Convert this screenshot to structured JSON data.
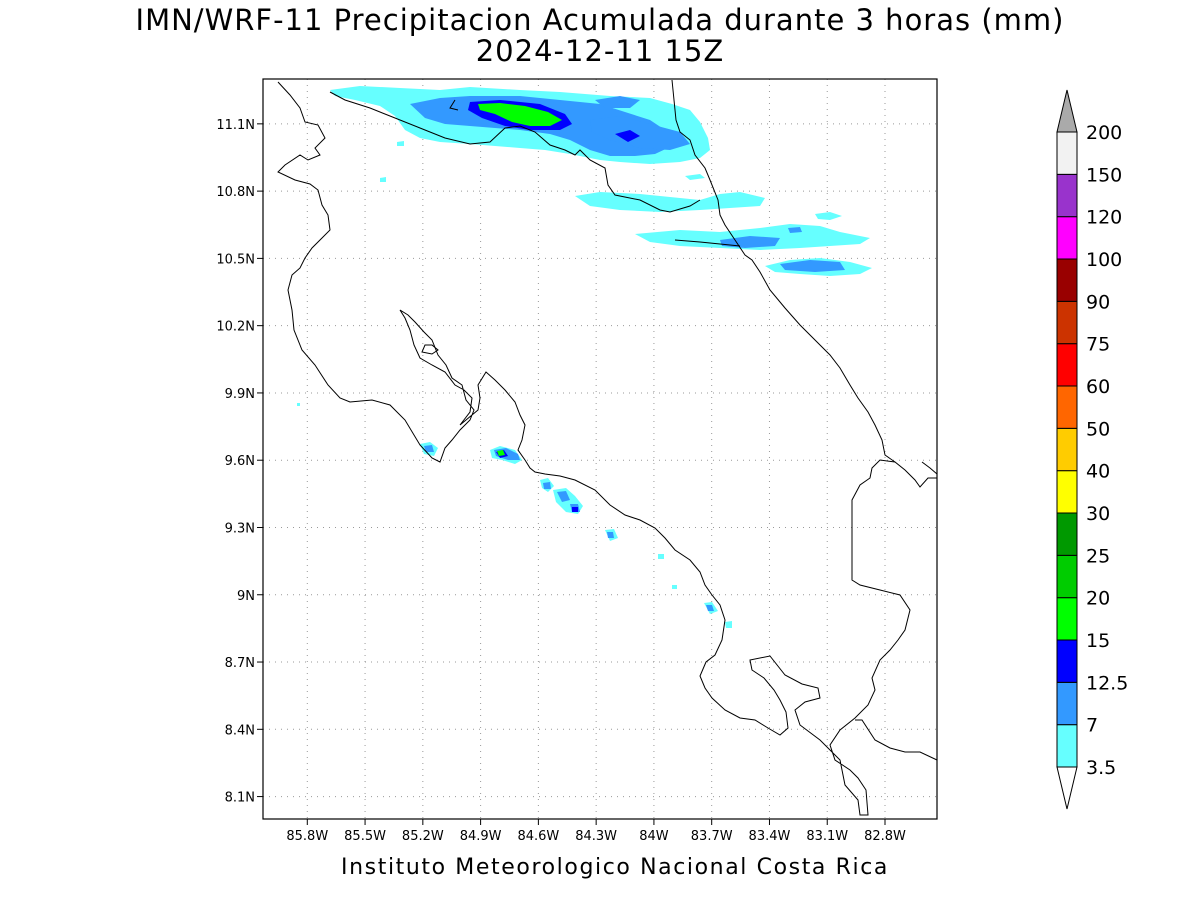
{
  "title": {
    "line1": "IMN/WRF-11 Precipitacion Acumulada durante 3 horas (mm)",
    "line2": "2024-12-11 15Z"
  },
  "map": {
    "lon_range": [
      -86.03,
      -82.53
    ],
    "lat_range": [
      8.0,
      11.3
    ],
    "lon_ticks": [
      {
        "value": -85.8,
        "label": "85.8W"
      },
      {
        "value": -85.5,
        "label": "85.5W"
      },
      {
        "value": -85.2,
        "label": "85.2W"
      },
      {
        "value": -84.9,
        "label": "84.9W"
      },
      {
        "value": -84.6,
        "label": "84.6W"
      },
      {
        "value": -84.3,
        "label": "84.3W"
      },
      {
        "value": -84.0,
        "label": "84W"
      },
      {
        "value": -83.7,
        "label": "83.7W"
      },
      {
        "value": -83.4,
        "label": "83.4W"
      },
      {
        "value": -83.1,
        "label": "83.1W"
      },
      {
        "value": -82.8,
        "label": "82.8W"
      }
    ],
    "lat_ticks": [
      {
        "value": 11.1,
        "label": "11.1N"
      },
      {
        "value": 10.8,
        "label": "10.8N"
      },
      {
        "value": 10.5,
        "label": "10.5N"
      },
      {
        "value": 10.2,
        "label": "10.2N"
      },
      {
        "value": 9.9,
        "label": "9.9N"
      },
      {
        "value": 9.6,
        "label": "9.6N"
      },
      {
        "value": 9.3,
        "label": "9.3N"
      },
      {
        "value": 9.0,
        "label": "9N"
      },
      {
        "value": 8.7,
        "label": "8.7N"
      },
      {
        "value": 8.4,
        "label": "8.4N"
      },
      {
        "value": 8.1,
        "label": "8.1N"
      }
    ],
    "grid": "dotted"
  },
  "colorbar": {
    "unit": "mm",
    "levels": [
      "3.5",
      "7",
      "12.5",
      "15",
      "20",
      "25",
      "30",
      "40",
      "50",
      "60",
      "75",
      "90",
      "100",
      "120",
      "150",
      "200"
    ],
    "colors": [
      "#ffffff",
      "#66ffff",
      "#3399ff",
      "#0000ff",
      "#00ff00",
      "#00cc00",
      "#009900",
      "#ffff00",
      "#ffcc00",
      "#ff6600",
      "#ff0000",
      "#cc3300",
      "#990000",
      "#ff00ff",
      "#9933cc",
      "#f2f2f2",
      "#aaaaaa"
    ]
  },
  "footer": "Instituto Meteorologico Nacional Costa Rica"
}
